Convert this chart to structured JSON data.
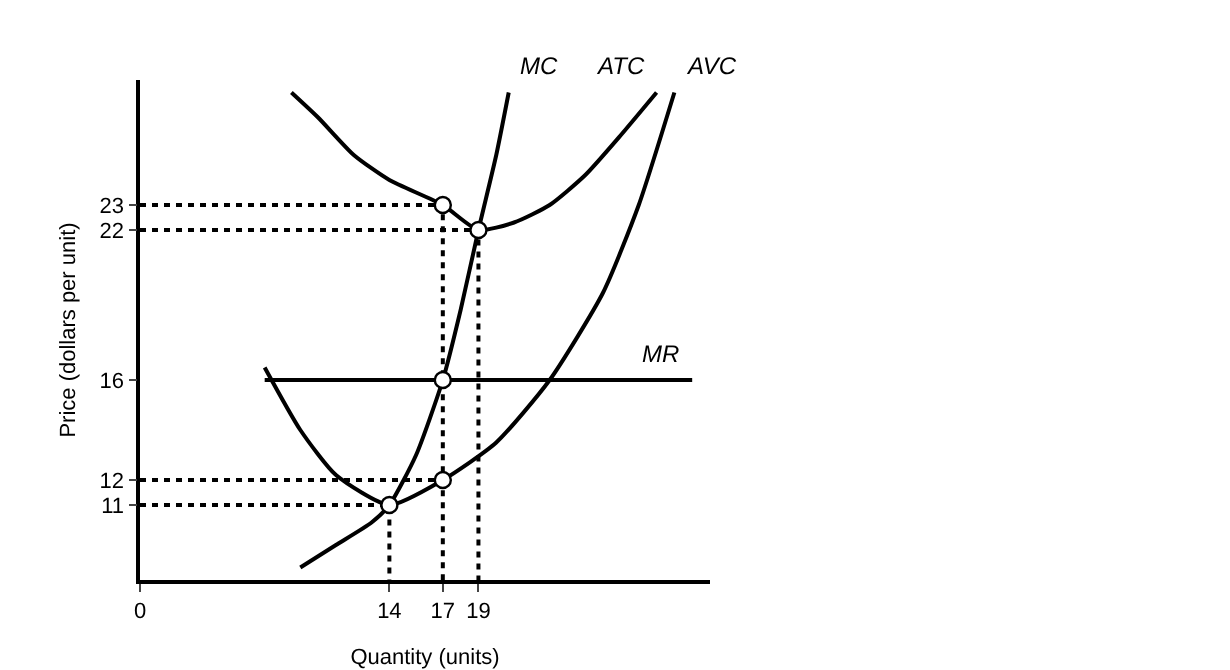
{
  "chart_data": {
    "type": "line",
    "xlabel": "Quantity (units)",
    "ylabel": "Price (dollars per unit)",
    "xlim": [
      0,
      32
    ],
    "ylim": [
      8,
      28
    ],
    "xticks": [
      0,
      14,
      17,
      19
    ],
    "yticks": [
      11,
      12,
      16,
      22,
      23
    ],
    "grid": false,
    "legend": false,
    "marker": "none",
    "line_style": "solid",
    "series": [
      {
        "name": "MC",
        "color": "#000000",
        "x": [
          9,
          11,
          13,
          14,
          15.5,
          17,
          18,
          19,
          20,
          20.7
        ],
        "values": [
          8.5,
          9.4,
          10.3,
          11,
          13,
          16,
          18.8,
          22,
          25,
          27.5
        ]
      },
      {
        "name": "ATC",
        "color": "#000000",
        "x": [
          8.5,
          10,
          12,
          14,
          17,
          19,
          21,
          23,
          25,
          27,
          29
        ],
        "values": [
          27.5,
          26.5,
          25,
          24,
          23,
          22,
          22.3,
          23,
          24.2,
          25.8,
          27.5
        ]
      },
      {
        "name": "AVC",
        "color": "#000000",
        "x": [
          7,
          9,
          11,
          14,
          17,
          20,
          23,
          26,
          28,
          30
        ],
        "values": [
          16.5,
          14,
          12.2,
          11,
          12,
          13.5,
          16,
          19.5,
          23,
          27.5
        ]
      },
      {
        "name": "MR",
        "color": "#000000",
        "x": [
          7,
          31
        ],
        "values": [
          16,
          16
        ]
      },
      {
        "color": "#000000",
        "type": "scatter",
        "marker": "circle",
        "x": [
          14,
          17,
          17,
          17,
          19
        ],
        "values": [
          11,
          12,
          16,
          23,
          22
        ]
      },
      {
        "color": "#000000",
        "line_style": "dotted",
        "x": [
          0,
          14,
          14
        ],
        "values": [
          11,
          11,
          8
        ]
      },
      {
        "color": "#000000",
        "line_style": "dotted",
        "x": [
          0,
          17,
          17
        ],
        "values": [
          23,
          23,
          8
        ]
      },
      {
        "color": "#000000",
        "line_style": "dotted",
        "x": [
          0,
          19,
          19
        ],
        "values": [
          22,
          22,
          8
        ]
      },
      {
        "color": "#000000",
        "line_style": "dotted",
        "x": [
          0,
          17
        ],
        "values": [
          12,
          12
        ]
      }
    ]
  }
}
